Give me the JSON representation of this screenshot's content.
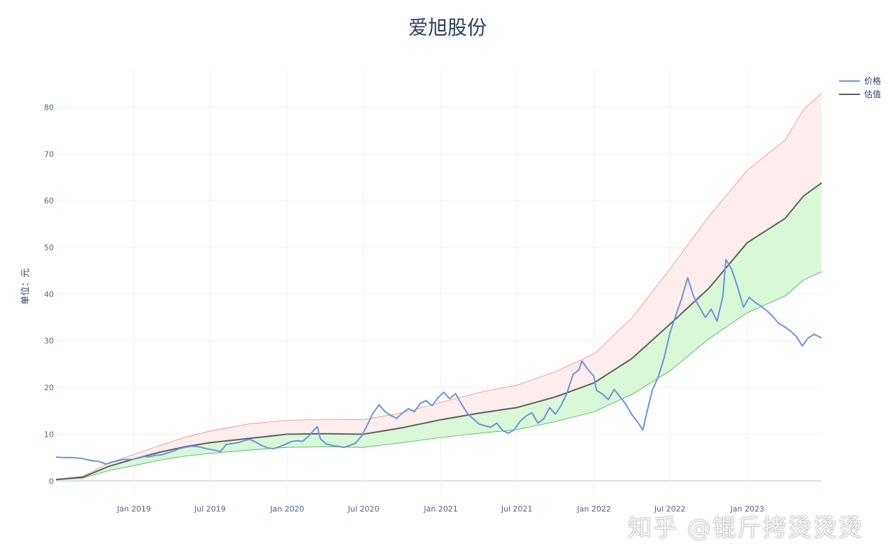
{
  "chart_data": {
    "type": "line",
    "title": "爱旭股份",
    "xlabel": "",
    "ylabel": "单位：元",
    "ylim": [
      -2.5,
      88
    ],
    "yticks": [
      0,
      10,
      20,
      30,
      40,
      50,
      60,
      70,
      80
    ],
    "xlim": [
      "2018-06-29",
      "2023-06-27"
    ],
    "xticks": [
      {
        "date": "2019-01-01",
        "label": "Jan 2019"
      },
      {
        "date": "2019-07-01",
        "label": "Jul 2019"
      },
      {
        "date": "2020-01-01",
        "label": "Jan 2020"
      },
      {
        "date": "2020-07-01",
        "label": "Jul 2020"
      },
      {
        "date": "2021-01-01",
        "label": "Jan 2021"
      },
      {
        "date": "2021-07-01",
        "label": "Jul 2021"
      },
      {
        "date": "2022-01-01",
        "label": "Jan 2022"
      },
      {
        "date": "2022-07-01",
        "label": "Jul 2022"
      },
      {
        "date": "2023-01-01",
        "label": "Jan 2023"
      }
    ],
    "grid": true,
    "legend_position": "top-right",
    "series": [
      {
        "name": "价格",
        "color": "#6b93db",
        "points": [
          [
            "2018-06-29",
            5.1
          ],
          [
            "2018-07-20",
            5.0
          ],
          [
            "2018-08-10",
            5.0
          ],
          [
            "2018-08-31",
            4.8
          ],
          [
            "2018-09-14",
            4.5
          ],
          [
            "2018-09-28",
            4.3
          ],
          [
            "2018-10-12",
            4.1
          ],
          [
            "2018-10-26",
            3.6
          ],
          [
            "2018-11-09",
            4.0
          ],
          [
            "2018-11-23",
            4.3
          ],
          [
            "2018-12-07",
            4.6
          ],
          [
            "2018-12-28",
            4.6
          ],
          [
            "2019-01-11",
            4.9
          ],
          [
            "2019-01-25",
            5.2
          ],
          [
            "2019-02-08",
            5.2
          ],
          [
            "2019-02-22",
            5.5
          ],
          [
            "2019-03-08",
            5.6
          ],
          [
            "2019-03-22",
            6.0
          ],
          [
            "2019-04-05",
            6.4
          ],
          [
            "2019-04-19",
            6.9
          ],
          [
            "2019-05-03",
            7.2
          ],
          [
            "2019-05-17",
            7.4
          ],
          [
            "2019-05-31",
            7.4
          ],
          [
            "2019-06-14",
            7.1
          ],
          [
            "2019-06-28",
            6.8
          ],
          [
            "2019-07-12",
            6.6
          ],
          [
            "2019-07-26",
            6.3
          ],
          [
            "2019-08-09",
            7.8
          ],
          [
            "2019-08-23",
            8.0
          ],
          [
            "2019-09-06",
            8.2
          ],
          [
            "2019-09-20",
            8.6
          ],
          [
            "2019-10-04",
            8.9
          ],
          [
            "2019-10-18",
            8.3
          ],
          [
            "2019-11-01",
            7.6
          ],
          [
            "2019-11-15",
            7.1
          ],
          [
            "2019-11-29",
            6.9
          ],
          [
            "2019-12-13",
            7.3
          ],
          [
            "2019-12-27",
            7.8
          ],
          [
            "2020-01-10",
            8.4
          ],
          [
            "2020-01-24",
            8.6
          ],
          [
            "2020-02-07",
            8.5
          ],
          [
            "2020-02-21",
            9.6
          ],
          [
            "2020-03-06",
            11.0
          ],
          [
            "2020-03-13",
            11.6
          ],
          [
            "2020-03-20",
            9.0
          ],
          [
            "2020-04-03",
            7.9
          ],
          [
            "2020-04-17",
            7.6
          ],
          [
            "2020-05-01",
            7.4
          ],
          [
            "2020-05-15",
            7.2
          ],
          [
            "2020-05-29",
            7.6
          ],
          [
            "2020-06-12",
            8.1
          ],
          [
            "2020-06-26",
            9.6
          ],
          [
            "2020-07-10",
            12.0
          ],
          [
            "2020-07-24",
            14.6
          ],
          [
            "2020-08-07",
            16.3
          ],
          [
            "2020-08-21",
            14.8
          ],
          [
            "2020-09-04",
            14.0
          ],
          [
            "2020-09-18",
            13.4
          ],
          [
            "2020-10-02",
            14.6
          ],
          [
            "2020-10-16",
            15.5
          ],
          [
            "2020-10-30",
            14.8
          ],
          [
            "2020-11-13",
            16.6
          ],
          [
            "2020-11-27",
            17.2
          ],
          [
            "2020-12-11",
            16.1
          ],
          [
            "2020-12-25",
            17.8
          ],
          [
            "2021-01-08",
            19.0
          ],
          [
            "2021-01-22",
            17.6
          ],
          [
            "2021-02-05",
            18.7
          ],
          [
            "2021-02-19",
            16.5
          ],
          [
            "2021-03-05",
            14.5
          ],
          [
            "2021-03-19",
            13.3
          ],
          [
            "2021-04-02",
            12.2
          ],
          [
            "2021-04-16",
            11.8
          ],
          [
            "2021-04-30",
            11.5
          ],
          [
            "2021-05-14",
            12.4
          ],
          [
            "2021-05-28",
            10.8
          ],
          [
            "2021-06-11",
            10.2
          ],
          [
            "2021-06-25",
            11.0
          ],
          [
            "2021-07-09",
            12.8
          ],
          [
            "2021-07-23",
            13.9
          ],
          [
            "2021-08-06",
            14.6
          ],
          [
            "2021-08-20",
            12.4
          ],
          [
            "2021-09-03",
            13.3
          ],
          [
            "2021-09-17",
            15.7
          ],
          [
            "2021-10-01",
            14.3
          ],
          [
            "2021-10-15",
            16.2
          ],
          [
            "2021-10-29",
            19.0
          ],
          [
            "2021-11-12",
            22.8
          ],
          [
            "2021-11-26",
            23.8
          ],
          [
            "2021-12-03",
            25.7
          ],
          [
            "2021-12-17",
            23.9
          ],
          [
            "2021-12-31",
            22.5
          ],
          [
            "2022-01-07",
            19.4
          ],
          [
            "2022-01-21",
            18.6
          ],
          [
            "2022-02-04",
            17.4
          ],
          [
            "2022-02-18",
            19.6
          ],
          [
            "2022-03-04",
            18.0
          ],
          [
            "2022-03-18",
            16.4
          ],
          [
            "2022-04-01",
            14.2
          ],
          [
            "2022-04-15",
            12.6
          ],
          [
            "2022-04-27",
            10.9
          ],
          [
            "2022-05-06",
            14.4
          ],
          [
            "2022-05-20",
            19.5
          ],
          [
            "2022-06-03",
            22.3
          ],
          [
            "2022-06-17",
            26.4
          ],
          [
            "2022-07-01",
            31.8
          ],
          [
            "2022-07-15",
            35.5
          ],
          [
            "2022-07-29",
            39.2
          ],
          [
            "2022-08-12",
            43.5
          ],
          [
            "2022-08-26",
            39.5
          ],
          [
            "2022-09-09",
            37.2
          ],
          [
            "2022-09-23",
            35.0
          ],
          [
            "2022-10-07",
            36.8
          ],
          [
            "2022-10-21",
            34.2
          ],
          [
            "2022-11-04",
            39.6
          ],
          [
            "2022-11-11",
            47.4
          ],
          [
            "2022-11-25",
            45.3
          ],
          [
            "2022-12-09",
            41.5
          ],
          [
            "2022-12-23",
            37.2
          ],
          [
            "2023-01-06",
            39.3
          ],
          [
            "2023-01-20",
            38.2
          ],
          [
            "2023-02-03",
            37.4
          ],
          [
            "2023-02-17",
            36.4
          ],
          [
            "2023-03-03",
            35.2
          ],
          [
            "2023-03-17",
            33.7
          ],
          [
            "2023-03-31",
            33.0
          ],
          [
            "2023-04-14",
            32.1
          ],
          [
            "2023-04-28",
            30.9
          ],
          [
            "2023-05-12",
            28.9
          ],
          [
            "2023-05-26",
            30.6
          ],
          [
            "2023-06-09",
            31.4
          ],
          [
            "2023-06-27",
            30.6
          ]
        ]
      },
      {
        "name": "估值",
        "color": "#5f5f5f",
        "points": [
          [
            "2018-06-29",
            0.3
          ],
          [
            "2018-09-01",
            0.8
          ],
          [
            "2018-11-01",
            3.1
          ],
          [
            "2019-01-01",
            4.7
          ],
          [
            "2019-03-01",
            6.1
          ],
          [
            "2019-05-01",
            7.3
          ],
          [
            "2019-07-01",
            8.2
          ],
          [
            "2019-10-01",
            9.1
          ],
          [
            "2020-01-01",
            10.0
          ],
          [
            "2020-04-01",
            10.1
          ],
          [
            "2020-07-01",
            10.0
          ],
          [
            "2020-10-01",
            11.4
          ],
          [
            "2021-01-01",
            13.1
          ],
          [
            "2021-04-01",
            14.5
          ],
          [
            "2021-07-01",
            15.7
          ],
          [
            "2021-10-01",
            18.0
          ],
          [
            "2022-01-01",
            21.0
          ],
          [
            "2022-04-01",
            26.2
          ],
          [
            "2022-07-01",
            33.6
          ],
          [
            "2022-10-01",
            41.2
          ],
          [
            "2023-01-01",
            51.0
          ],
          [
            "2023-04-01",
            56.2
          ],
          [
            "2023-05-15",
            61.0
          ],
          [
            "2023-06-27",
            63.8
          ]
        ]
      }
    ],
    "bands": [
      {
        "name": "upper",
        "line_color": "#e8908a",
        "fill_color": "#fdeeed",
        "points": [
          [
            "2018-06-29",
            0.3
          ],
          [
            "2018-09-01",
            1.0
          ],
          [
            "2018-11-01",
            3.8
          ],
          [
            "2019-01-01",
            5.7
          ],
          [
            "2019-03-01",
            7.5
          ],
          [
            "2019-05-01",
            9.3
          ],
          [
            "2019-07-01",
            10.7
          ],
          [
            "2019-10-01",
            12.2
          ],
          [
            "2020-01-01",
            13.0
          ],
          [
            "2020-04-01",
            13.2
          ],
          [
            "2020-07-01",
            13.1
          ],
          [
            "2020-10-01",
            14.6
          ],
          [
            "2021-01-01",
            16.8
          ],
          [
            "2021-04-01",
            18.9
          ],
          [
            "2021-07-01",
            20.5
          ],
          [
            "2021-10-01",
            23.4
          ],
          [
            "2022-01-01",
            27.2
          ],
          [
            "2022-04-01",
            34.9
          ],
          [
            "2022-07-01",
            45.4
          ],
          [
            "2022-10-01",
            56.6
          ],
          [
            "2023-01-01",
            66.5
          ],
          [
            "2023-04-01",
            73.0
          ],
          [
            "2023-05-15",
            79.5
          ],
          [
            "2023-06-27",
            83.0
          ]
        ]
      },
      {
        "name": "lower",
        "line_color": "#3cb84a",
        "fill_color": "#d8f8d8",
        "points": [
          [
            "2018-06-29",
            0.2
          ],
          [
            "2018-09-01",
            0.6
          ],
          [
            "2018-11-01",
            2.2
          ],
          [
            "2019-01-01",
            3.3
          ],
          [
            "2019-03-01",
            4.4
          ],
          [
            "2019-05-01",
            5.3
          ],
          [
            "2019-07-01",
            5.9
          ],
          [
            "2019-10-01",
            6.6
          ],
          [
            "2020-01-01",
            7.2
          ],
          [
            "2020-04-01",
            7.3
          ],
          [
            "2020-07-01",
            7.2
          ],
          [
            "2020-10-01",
            8.2
          ],
          [
            "2021-01-01",
            9.3
          ],
          [
            "2021-04-01",
            10.2
          ],
          [
            "2021-07-01",
            11.0
          ],
          [
            "2021-10-01",
            12.7
          ],
          [
            "2022-01-01",
            14.8
          ],
          [
            "2022-04-01",
            18.5
          ],
          [
            "2022-07-01",
            23.6
          ],
          [
            "2022-10-01",
            30.4
          ],
          [
            "2023-01-01",
            36.0
          ],
          [
            "2023-04-01",
            39.6
          ],
          [
            "2023-05-15",
            43.0
          ],
          [
            "2023-06-27",
            44.8
          ]
        ]
      }
    ],
    "watermark": "知乎 @锟斤拷烫烫烫"
  }
}
